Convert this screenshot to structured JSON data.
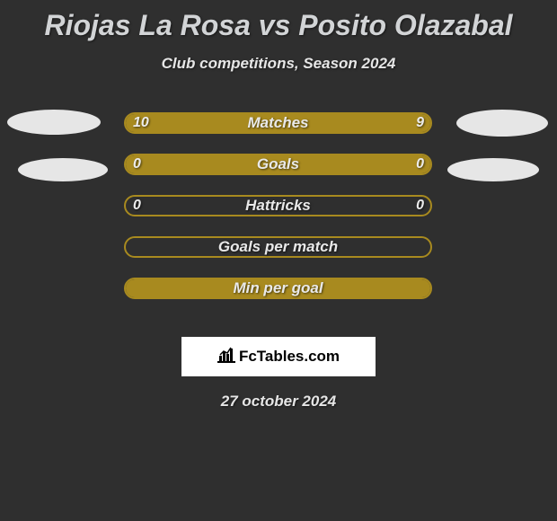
{
  "title": "Riojas La Rosa vs Posito Olazabal",
  "subtitle": "Club competitions, Season 2024",
  "background_color": "#2f2f2f",
  "bar_border_color": "#a88a1f",
  "bar_fill_color": "#a88a1f",
  "text_color": "#e6e6e6",
  "rows": [
    {
      "label": "Matches",
      "left_val": "10",
      "right_val": "9",
      "fill_pct": 100
    },
    {
      "label": "Goals",
      "left_val": "0",
      "right_val": "0",
      "fill_pct": 100
    },
    {
      "label": "Hattricks",
      "left_val": "0",
      "right_val": "0",
      "fill_pct": 0
    },
    {
      "label": "Goals per match",
      "left_val": "",
      "right_val": "",
      "fill_pct": 0
    },
    {
      "label": "Min per goal",
      "left_val": "",
      "right_val": "",
      "fill_pct": 100
    }
  ],
  "badge_text": "FcTables.com",
  "date": "27 october 2024"
}
